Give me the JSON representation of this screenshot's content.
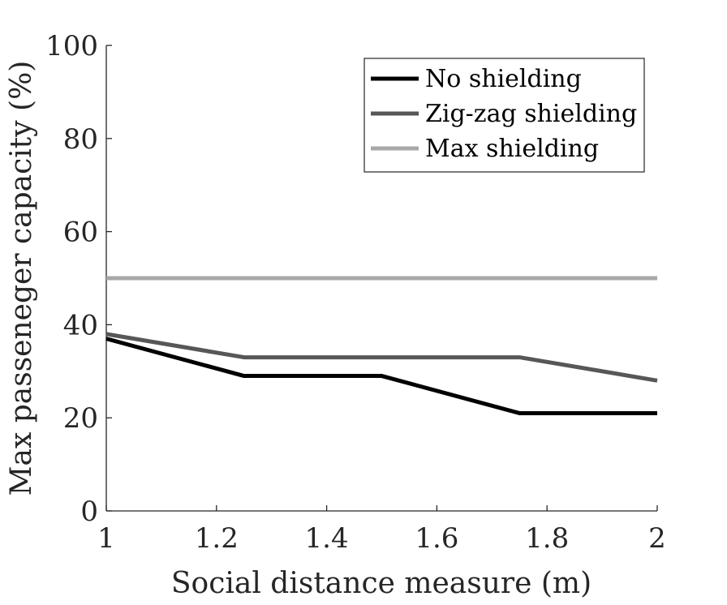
{
  "chart_data": {
    "type": "line",
    "title": "",
    "xlabel": "Social distance measure (m)",
    "ylabel": "Max passeneger capacity (%)",
    "xlim": [
      1,
      2
    ],
    "ylim": [
      0,
      100
    ],
    "x_ticks": [
      1,
      1.2,
      1.4,
      1.6,
      1.8,
      2
    ],
    "x_tick_labels": [
      "1",
      "1.2",
      "1.4",
      "1.6",
      "1.8",
      "2"
    ],
    "y_ticks": [
      0,
      20,
      40,
      60,
      80,
      100
    ],
    "y_tick_labels": [
      "0",
      "20",
      "40",
      "60",
      "80",
      "100"
    ],
    "grid": false,
    "legend_position": "top-right",
    "series": [
      {
        "name": "No shielding",
        "color": "#000000",
        "x": [
          1,
          1.25,
          1.5,
          1.75,
          2
        ],
        "y": [
          37,
          29,
          29,
          21,
          21
        ]
      },
      {
        "name": "Zig-zag shielding",
        "color": "#575757",
        "x": [
          1,
          1.25,
          1.5,
          1.75,
          2
        ],
        "y": [
          38,
          33,
          33,
          33,
          28
        ]
      },
      {
        "name": "Max shielding",
        "color": "#a8a8a8",
        "x": [
          1,
          1.25,
          1.5,
          1.75,
          2
        ],
        "y": [
          50,
          50,
          50,
          50,
          50
        ]
      }
    ]
  }
}
